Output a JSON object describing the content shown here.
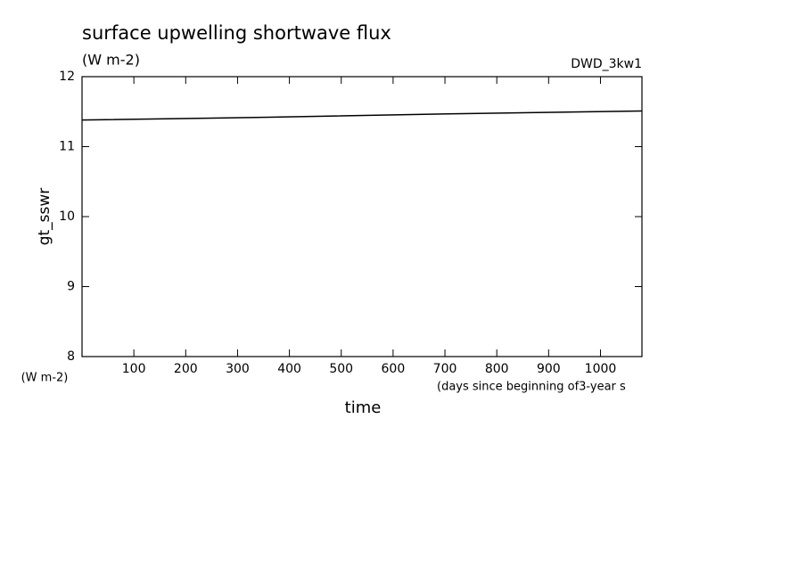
{
  "chart_data": {
    "type": "line",
    "title": "surface upwelling shortwave flux",
    "subtitle": "(W m-2)",
    "source_label": "DWD_3kw1",
    "ylabel": "gt_sswr",
    "yunit": "(W m-2)",
    "xlabel": "time",
    "xunit": "(days since beginning of3-year s",
    "x": [
      0,
      360,
      720,
      1080
    ],
    "series": [
      {
        "name": "gt_sswr",
        "color": "#000000",
        "values": [
          11.38,
          11.42,
          11.47,
          11.51
        ]
      }
    ],
    "xlim": [
      0,
      1080
    ],
    "xticks": [
      100,
      200,
      300,
      400,
      500,
      600,
      700,
      800,
      900,
      1000
    ],
    "ylim": [
      8,
      12
    ],
    "yticks": [
      8,
      9,
      10,
      11,
      12
    ]
  }
}
